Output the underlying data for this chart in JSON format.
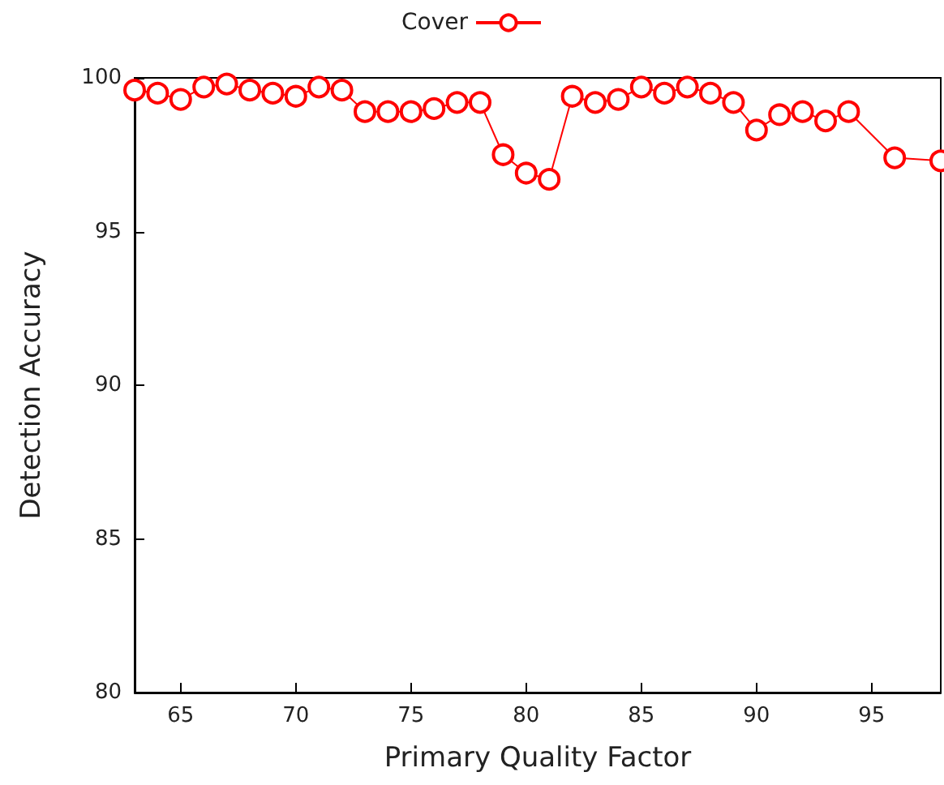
{
  "chart_data": {
    "type": "line",
    "xlabel": "Primary Quality Factor",
    "ylabel": "Detection Accuracy",
    "x": [
      63,
      64,
      65,
      66,
      67,
      68,
      69,
      70,
      71,
      72,
      73,
      74,
      75,
      76,
      77,
      78,
      79,
      80,
      81,
      82,
      83,
      84,
      85,
      86,
      87,
      88,
      89,
      90,
      91,
      92,
      93,
      94,
      96,
      98
    ],
    "series": [
      {
        "name": "Cover",
        "color": "#ff0000",
        "values": [
          99.6,
          99.5,
          99.3,
          99.7,
          99.8,
          99.6,
          99.5,
          99.4,
          99.7,
          99.6,
          98.9,
          98.9,
          98.9,
          99.0,
          99.2,
          99.2,
          97.5,
          96.9,
          96.7,
          99.4,
          99.2,
          99.3,
          99.7,
          99.5,
          99.7,
          99.5,
          99.2,
          98.3,
          98.8,
          98.9,
          98.6,
          98.9,
          97.4,
          97.3
        ]
      }
    ],
    "xlim": [
      63,
      98
    ],
    "xticks": [
      65,
      70,
      75,
      80,
      85,
      90,
      95
    ],
    "ylim": [
      80,
      100
    ],
    "yticks": [
      80,
      85,
      90,
      95,
      100
    ],
    "grid": false,
    "legend": "top",
    "marker": "circle",
    "line_style": "solid"
  }
}
